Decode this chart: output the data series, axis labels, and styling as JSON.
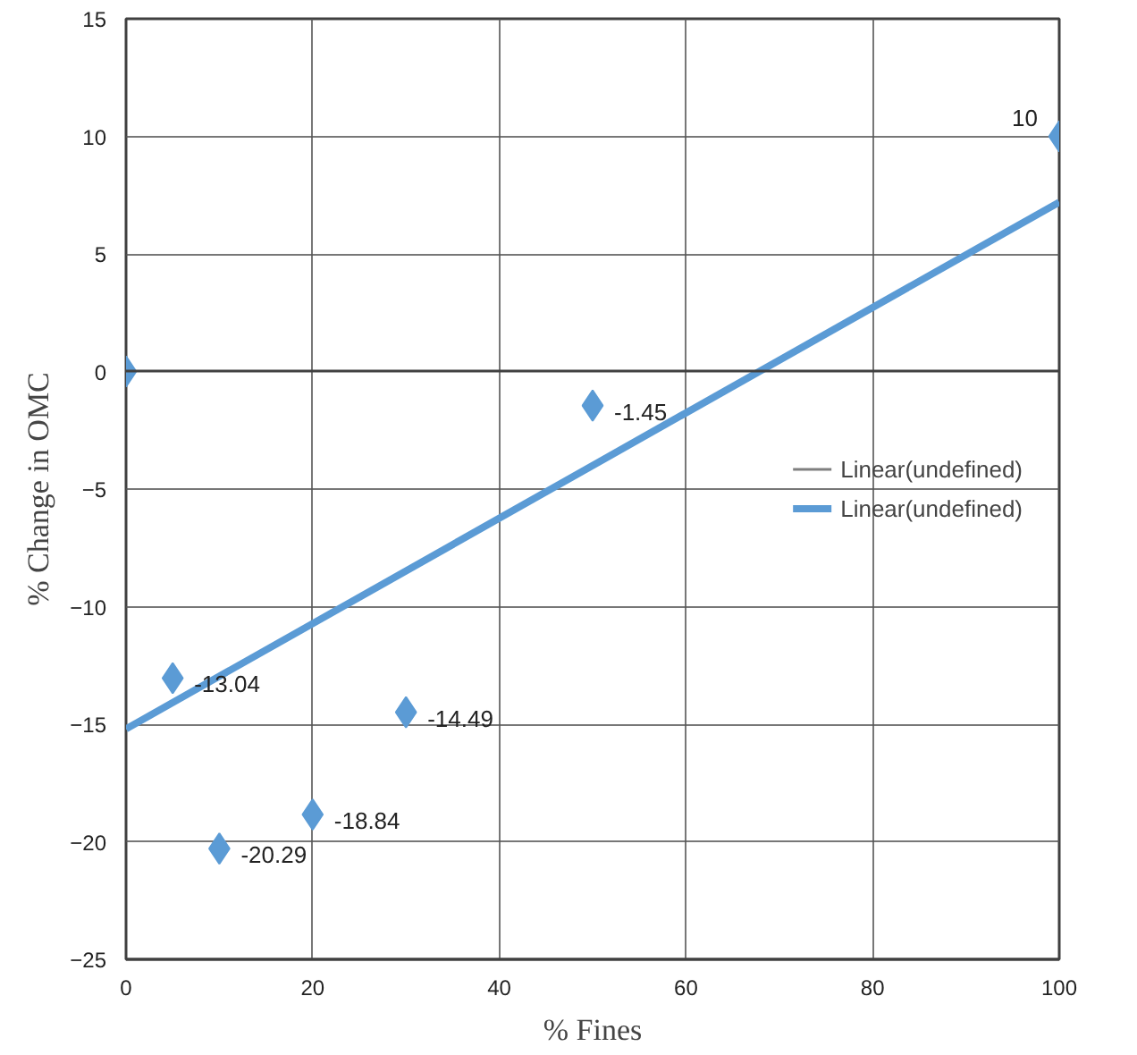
{
  "chart_data": {
    "type": "scatter",
    "xlabel": "% Fines",
    "ylabel": "% Change in OMC",
    "xlim": [
      0,
      100
    ],
    "ylim": [
      -25,
      15
    ],
    "xticks": [
      0,
      20,
      40,
      60,
      80,
      100
    ],
    "yticks": [
      -25,
      -20,
      -15,
      -10,
      -5,
      0,
      5,
      10,
      15
    ],
    "grid": true,
    "legend": "right",
    "series": [
      {
        "marker": "diamond",
        "color": "#5b9bd5",
        "x": [
          0,
          5,
          10,
          20,
          30,
          50,
          100
        ],
        "values": [
          0,
          -13.04,
          -20.29,
          -18.84,
          -14.49,
          -1.45,
          10
        ],
        "value_labels": [
          null,
          "-13.04",
          "-20.29",
          "-18.84",
          "-14.49",
          "-1.45",
          "10"
        ]
      },
      {
        "type": "line",
        "name": "Linear(undefined)",
        "color": "#7f7f7f"
      },
      {
        "type": "line",
        "name": "Linear(undefined)",
        "color": "#5b9bd5",
        "x": [
          0,
          100
        ],
        "values": [
          -15.2,
          7.2
        ]
      }
    ]
  }
}
